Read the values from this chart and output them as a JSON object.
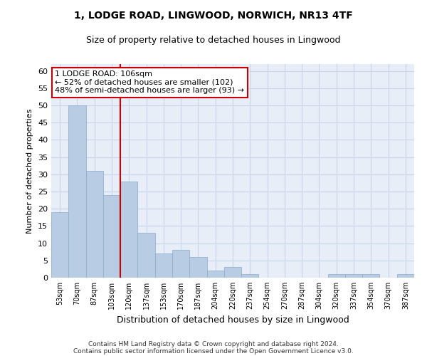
{
  "title": "1, LODGE ROAD, LINGWOOD, NORWICH, NR13 4TF",
  "subtitle": "Size of property relative to detached houses in Lingwood",
  "xlabel": "Distribution of detached houses by size in Lingwood",
  "ylabel": "Number of detached properties",
  "bar_labels": [
    "53sqm",
    "70sqm",
    "87sqm",
    "103sqm",
    "120sqm",
    "137sqm",
    "153sqm",
    "170sqm",
    "187sqm",
    "204sqm",
    "220sqm",
    "237sqm",
    "254sqm",
    "270sqm",
    "287sqm",
    "304sqm",
    "320sqm",
    "337sqm",
    "354sqm",
    "370sqm",
    "387sqm"
  ],
  "bar_heights": [
    19,
    50,
    31,
    24,
    28,
    13,
    7,
    8,
    6,
    2,
    3,
    1,
    0,
    0,
    0,
    0,
    1,
    1,
    1,
    0,
    1
  ],
  "bar_color": "#b8cce4",
  "bar_edgecolor": "#8aaac8",
  "grid_color": "#c8d4e8",
  "background_color": "#e8eef8",
  "vline_color": "#cc0000",
  "annotation_text": "1 LODGE ROAD: 106sqm\n← 52% of detached houses are smaller (102)\n48% of semi-detached houses are larger (93) →",
  "annotation_box_edgecolor": "#cc0000",
  "ylim": [
    0,
    62
  ],
  "yticks": [
    0,
    5,
    10,
    15,
    20,
    25,
    30,
    35,
    40,
    45,
    50,
    55,
    60
  ],
  "footer_line1": "Contains HM Land Registry data © Crown copyright and database right 2024.",
  "footer_line2": "Contains public sector information licensed under the Open Government Licence v3.0.",
  "title_fontsize": 10,
  "subtitle_fontsize": 9,
  "xlabel_fontsize": 9,
  "ylabel_fontsize": 8,
  "tick_fontsize": 7,
  "annotation_fontsize": 8,
  "footer_fontsize": 6.5
}
